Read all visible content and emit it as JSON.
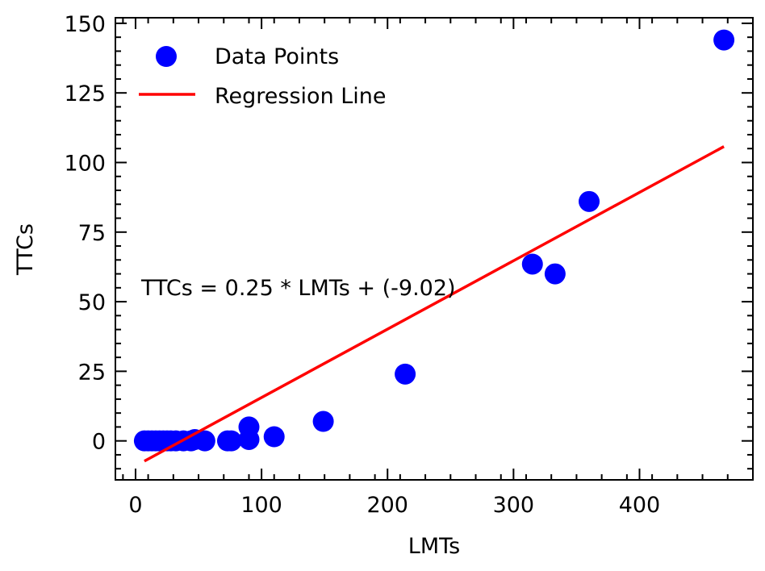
{
  "chart_data": {
    "type": "scatter",
    "title": "",
    "xlabel": "LMTs",
    "ylabel": "TTCs",
    "xlim": [
      -16,
      490
    ],
    "ylim": [
      -14,
      152
    ],
    "xticks": [
      0,
      100,
      200,
      300,
      400
    ],
    "yticks": [
      0,
      25,
      50,
      75,
      100,
      125,
      150
    ],
    "xtick_labels": [
      "0",
      "100",
      "200",
      "300",
      "400"
    ],
    "ytick_labels": [
      "0",
      "25",
      "50",
      "75",
      "100",
      "125",
      "150"
    ],
    "grid": false,
    "legend_position": "top-left",
    "series": [
      {
        "name": "Data Points",
        "kind": "scatter",
        "color": "#0000ff",
        "points": [
          {
            "x": 7,
            "y": 0
          },
          {
            "x": 10,
            "y": 0
          },
          {
            "x": 13,
            "y": 0
          },
          {
            "x": 16,
            "y": 0
          },
          {
            "x": 19,
            "y": 0
          },
          {
            "x": 22,
            "y": 0
          },
          {
            "x": 25,
            "y": 0
          },
          {
            "x": 28,
            "y": 0
          },
          {
            "x": 32,
            "y": 0
          },
          {
            "x": 38,
            "y": 0
          },
          {
            "x": 44,
            "y": 0
          },
          {
            "x": 47,
            "y": 0.5
          },
          {
            "x": 55,
            "y": 0
          },
          {
            "x": 73,
            "y": 0
          },
          {
            "x": 76,
            "y": 0
          },
          {
            "x": 90,
            "y": 0.5
          },
          {
            "x": 90,
            "y": 5
          },
          {
            "x": 110,
            "y": 1.5
          },
          {
            "x": 149,
            "y": 7
          },
          {
            "x": 214,
            "y": 24
          },
          {
            "x": 315,
            "y": 63.5
          },
          {
            "x": 333,
            "y": 60
          },
          {
            "x": 360,
            "y": 86
          },
          {
            "x": 467,
            "y": 144
          }
        ]
      },
      {
        "name": "Regression Line",
        "kind": "line",
        "color": "#ff0000",
        "x": [
          7,
          467
        ],
        "y": [
          -7.27,
          105.73
        ]
      }
    ],
    "annotations": [
      {
        "text": "TTCs = 0.25 * LMTs + (-9.02)",
        "x": 6,
        "y": 52
      }
    ]
  }
}
